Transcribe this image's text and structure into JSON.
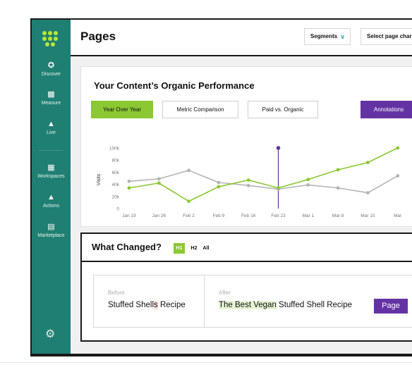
{
  "sidebar": {
    "items": [
      {
        "label": "Discover",
        "icon": "compass-icon"
      },
      {
        "label": "Measure",
        "icon": "bar-chart-icon"
      },
      {
        "label": "Live",
        "icon": "flask-icon"
      },
      {
        "label": "Workspaces",
        "icon": "grid-icon"
      },
      {
        "label": "Actions",
        "icon": "shapes-icon"
      },
      {
        "label": "Marketplace",
        "icon": "store-icon"
      }
    ],
    "settings_icon": "gear-icon"
  },
  "header": {
    "title": "Pages",
    "segments_label": "Segments",
    "select_label": "Select page char"
  },
  "performance": {
    "title": "Your Content’s Organic Performance",
    "tabs": [
      "Year Over Year",
      "Metric Comparison",
      "Paid vs. Organic"
    ],
    "active_tab": "Year Over Year",
    "annotations_label": "Annotations"
  },
  "chart_data": {
    "type": "line",
    "ylabel": "Visits",
    "ylim": [
      0,
      100000
    ],
    "yticks": [
      "0",
      "20k",
      "40k",
      "60k",
      "80k",
      "100k"
    ],
    "categories": [
      "Jan 19",
      "Jan 26",
      "Feb 2",
      "Feb 9",
      "Feb 16",
      "Feb 23",
      "Mar 1",
      "Mar 8",
      "Mar 15",
      "Mar"
    ],
    "series": [
      {
        "color": "#8bc832",
        "values": [
          34000,
          42000,
          12000,
          36000,
          47000,
          34000,
          48000,
          64000,
          76000,
          100000
        ]
      },
      {
        "color": "#b4b4b4",
        "values": [
          45000,
          49000,
          63000,
          43000,
          38000,
          32000,
          39000,
          34000,
          26000,
          54000
        ]
      }
    ],
    "annotation_category": "Feb 23",
    "annotation_color": "#6433a3",
    "grid": false
  },
  "changes": {
    "title": "What Changed?",
    "tabs": [
      "H1",
      "H2",
      "All"
    ],
    "active_tab": "H1",
    "before_label": "Before",
    "before_text_main": "Stuffed Shell",
    "before_text_hl": "s",
    "before_text_end": " Recipe",
    "after_label": "After",
    "after_text_hl": "The Best Vegan",
    "after_text_rest": " Stuffed Shell Recipe",
    "tag_label": "Page"
  }
}
